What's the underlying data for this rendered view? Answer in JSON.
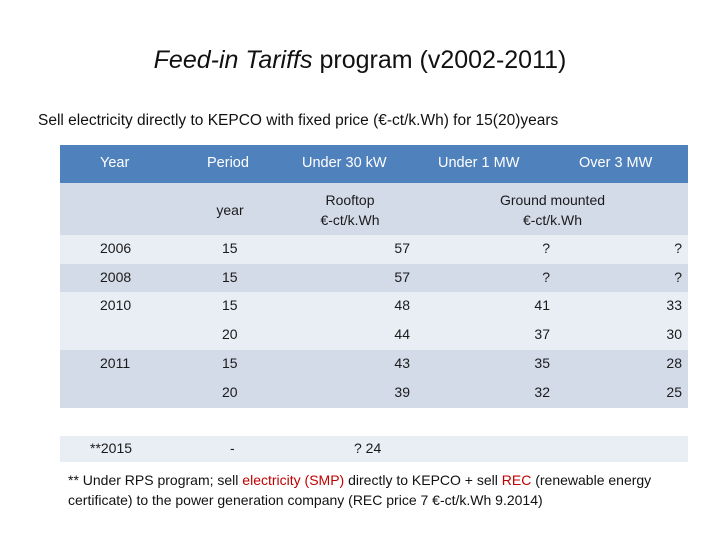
{
  "title": {
    "italic": "Feed-in Tariffs",
    "rest": " program (v2002-2011)"
  },
  "subtitle": "Sell electricity directly to KEPCO with fixed price (€-ct/k.Wh) for 15(20)years",
  "table": {
    "headers": {
      "year": "Year",
      "period": "Period",
      "under30": "Under 30 kW",
      "under1mw": "Under 1 MW",
      "over3mw": "Over 3 MW"
    },
    "subheaders": {
      "period_unit": "year",
      "rooftop_line1": "Rooftop",
      "rooftop_line2": "€-ct/k.Wh",
      "ground_line1": "Ground mounted",
      "ground_line2": "€-ct/k.Wh"
    },
    "rows": [
      {
        "year": "2006",
        "period": "15",
        "under30": "57",
        "under1mw": "?",
        "over3mw": "?"
      },
      {
        "year": "2008",
        "period": "15",
        "under30": "57",
        "under1mw": "?",
        "over3mw": "?"
      },
      {
        "year": "2010",
        "period": "15",
        "under30": "48",
        "under1mw": "41",
        "over3mw": "33"
      },
      {
        "year": "",
        "period": "20",
        "under30": "44",
        "under1mw": "37",
        "over3mw": "30"
      },
      {
        "year": "2011",
        "period": "15",
        "under30": "43",
        "under1mw": "35",
        "over3mw": "28"
      },
      {
        "year": "",
        "period": "20",
        "under30": "39",
        "under1mw": "32",
        "over3mw": "25"
      }
    ],
    "last_row": {
      "year": "**2015",
      "period": "-",
      "under30": "? 24"
    }
  },
  "note": {
    "p1": "** Under RPS program; sell ",
    "red1": "electricity (SMP)",
    "p2": " directly to KEPCO + sell ",
    "red2": "REC",
    "p3": " (renewable energy certificate) to the power generation company (REC price 7 €-ct/k.Wh 9.2014)"
  },
  "colors": {
    "header_blue": "#4f81bd",
    "band": "#d3dbe9",
    "highlight_red": "#c00000"
  }
}
